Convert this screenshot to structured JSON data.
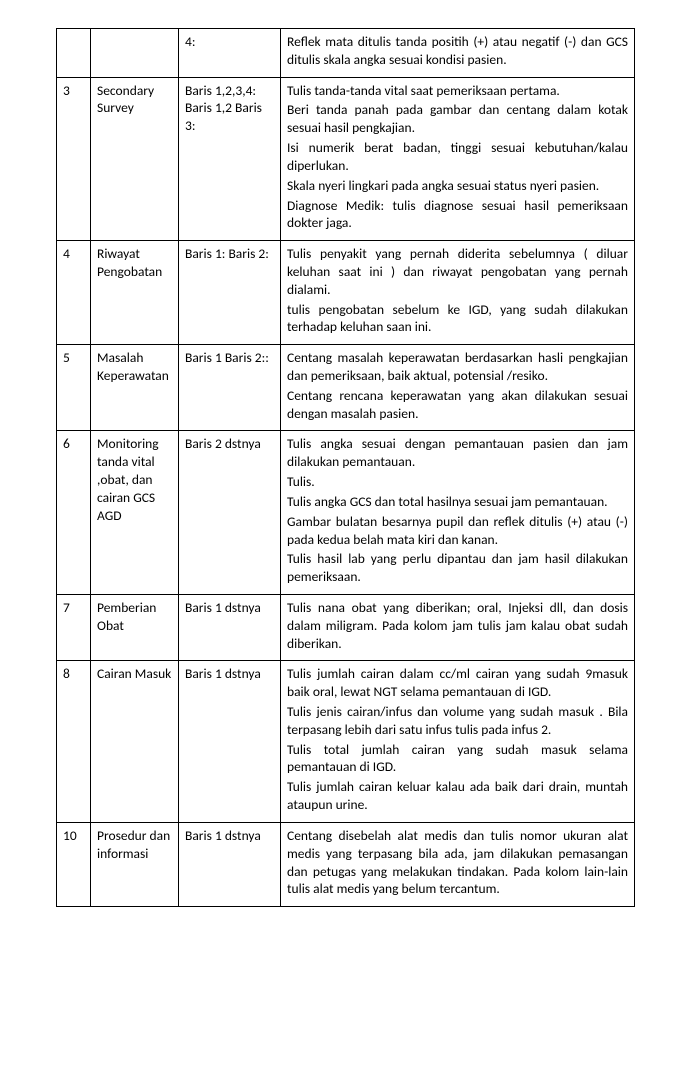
{
  "rows": [
    {
      "num": "",
      "title": "",
      "col3": "4:",
      "desc": [
        "Reflek mata ditulis tanda positih (+) atau negatif (-) dan GCS ditulis skala angka sesuai kondisi pasien."
      ]
    },
    {
      "num": "3",
      "title": "Secondary Survey",
      "col3": "Baris 1,2,3,4: Baris 1,2 Baris 3:",
      "desc": [
        "Tulis tanda-tanda vital  saat pemeriksaan pertama.",
        "Beri tanda panah pada gambar dan centang dalam kotak sesuai hasil pengkajian.",
        "Isi numerik  berat badan, tinggi sesuai kebutuhan/kalau diperlukan.",
        "Skala nyeri lingkari pada angka sesuai status nyeri pasien.",
        "Diagnose Medik: tulis diagnose sesuai hasil pemeriksaan dokter jaga."
      ]
    },
    {
      "num": "4",
      "title": "Riwayat Pengobatan",
      "col3": "Baris 1: Baris 2:",
      "desc": [
        "Tulis penyakit yang pernah diderita sebelumnya ( diluar keluhan saat ini ) dan riwayat pengobatan yang pernah dialami.",
        "tulis pengobatan sebelum ke IGD, yang sudah dilakukan terhadap keluhan saan ini."
      ]
    },
    {
      "num": "5",
      "title": "Masalah Keperawatan",
      "col3": "Baris 1 Baris 2::",
      "desc": [
        "Centang masalah keperawatan berdasarkan hasli pengkajian dan pemeriksaan, baik aktual, potensial /resiko.",
        "Centang rencana keperawatan yang akan dilakukan sesuai dengan masalah pasien."
      ]
    },
    {
      "num": "6",
      "title": "Monitoring tanda vital ,obat, dan cairan GCS AGD",
      "col3": "Baris 2 dstnya",
      "desc": [
        "Tulis angka sesuai dengan pemantauan pasien dan jam dilakukan pemantauan.",
        "Tulis.",
        "Tulis angka GCS dan total hasilnya sesuai jam pemantauan.",
        "Gambar bulatan besarnya pupil dan reflek ditulis (+) atau (-) pada kedua belah mata kiri dan kanan.",
        "Tulis hasil lab yang perlu dipantau dan jam hasil dilakukan pemeriksaan."
      ]
    },
    {
      "num": "7",
      "title": "Pemberian Obat",
      "col3": "Baris 1 dstnya",
      "desc": [
        "Tulis nana obat yang diberikan; oral, Injeksi dll, dan dosis dalam miligram. Pada kolom jam tulis jam kalau obat sudah diberikan."
      ]
    },
    {
      "num": "8",
      "title": "Cairan Masuk",
      "col3": "Baris 1 dstnya",
      "desc": [
        "Tulis jumlah cairan dalam cc/ml cairan yang sudah 9masuk baik oral, lewat NGT  selama pemantauan di IGD.",
        "Tulis jenis cairan/infus dan volume yang sudah masuk . Bila terpasang lebih dari satu infus tulis pada infus 2.",
        "Tulis total jumlah cairan yang sudah masuk selama pemantauan di IGD.",
        "Tulis jumlah cairan keluar kalau ada baik dari drain, muntah ataupun urine."
      ]
    },
    {
      "num": "10",
      "title": "Prosedur dan informasi",
      "col3": "Baris 1 dstnya",
      "desc": [
        "Centang disebelah alat medis dan tulis nomor ukuran alat medis yang terpasang bila ada, jam dilakukan pemasangan dan petugas yang melakukan tindakan. Pada kolom lain-lain tulis alat medis yang belum tercantum."
      ]
    }
  ]
}
